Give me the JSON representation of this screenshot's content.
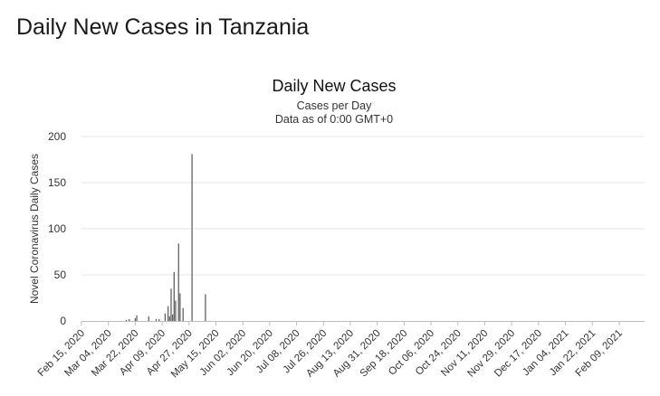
{
  "page": {
    "heading": "Daily New Cases in Tanzania"
  },
  "chart_data": {
    "type": "bar",
    "title": "Daily New Cases",
    "subtitle_lines": [
      "Cases per Day",
      "Data as of 0:00 GMT+0"
    ],
    "ylabel": "Novel Coronavirus Daily Cases",
    "xlabel": "",
    "ylim": [
      0,
      200
    ],
    "yticks": [
      0,
      50,
      100,
      150,
      200
    ],
    "x_start": "2020-02-15",
    "x_end": "2021-02-26",
    "xtick_labels": [
      "Feb 15, 2020",
      "Mar 04, 2020",
      "Mar 22, 2020",
      "Apr 09, 2020",
      "Apr 27, 2020",
      "May 15, 2020",
      "Jun 02, 2020",
      "Jun 20, 2020",
      "Jul 08, 2020",
      "Jul 26, 2020",
      "Aug 13, 2020",
      "Aug 31, 2020",
      "Sep 18, 2020",
      "Oct 06, 2020",
      "Oct 24, 2020",
      "Nov 11, 2020",
      "Nov 29, 2020",
      "Dec 17, 2020",
      "Jan 04, 2021",
      "Jan 22, 2021",
      "Feb 09, 2021"
    ],
    "grid": true,
    "bar_color": "#555555",
    "series": [
      {
        "points": [
          {
            "x": "2020-03-16",
            "y": 1
          },
          {
            "x": "2020-03-18",
            "y": 2
          },
          {
            "x": "2020-03-22",
            "y": 3
          },
          {
            "x": "2020-03-23",
            "y": 6
          },
          {
            "x": "2020-03-31",
            "y": 5
          },
          {
            "x": "2020-04-05",
            "y": 2
          },
          {
            "x": "2020-04-07",
            "y": 2
          },
          {
            "x": "2020-04-11",
            "y": 8
          },
          {
            "x": "2020-04-13",
            "y": 16
          },
          {
            "x": "2020-04-14",
            "y": 5
          },
          {
            "x": "2020-04-15",
            "y": 35
          },
          {
            "x": "2020-04-16",
            "y": 7
          },
          {
            "x": "2020-04-17",
            "y": 53
          },
          {
            "x": "2020-04-18",
            "y": 22
          },
          {
            "x": "2020-04-20",
            "y": 84
          },
          {
            "x": "2020-04-21",
            "y": 30
          },
          {
            "x": "2020-04-23",
            "y": 14
          },
          {
            "x": "2020-04-29",
            "y": 181
          },
          {
            "x": "2020-05-08",
            "y": 29
          }
        ]
      }
    ]
  }
}
